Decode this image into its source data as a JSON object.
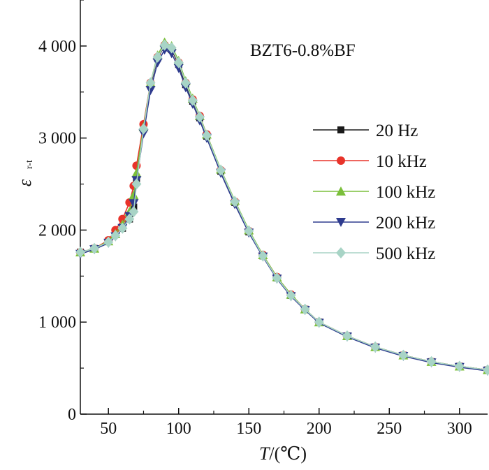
{
  "chart_data": {
    "type": "line",
    "annotation": "BZT6-0.8%BF",
    "xlabel_italic": "T",
    "xlabel_rest": "/(℃)",
    "ylabel_main": "ε",
    "ylabel_sub": "r-t",
    "xlim": [
      30,
      320
    ],
    "ylim": [
      0,
      4500
    ],
    "xticks": [
      50,
      100,
      150,
      200,
      250,
      300
    ],
    "xtick_labels": [
      "50",
      "100",
      "150",
      "200",
      "250",
      "300"
    ],
    "yticks": [
      0,
      1000,
      2000,
      3000,
      4000
    ],
    "ytick_labels": [
      "0",
      "1 000",
      "2 000",
      "3 000",
      "4 000"
    ],
    "series": [
      {
        "name": "20 Hz",
        "marker": "square",
        "color": "#1a1a1a",
        "x": [
          30,
          40,
          50,
          55,
          60,
          65,
          68,
          70,
          75,
          80,
          85,
          90,
          95,
          100,
          105,
          110,
          115,
          120,
          130,
          140,
          150,
          160,
          170,
          180,
          190,
          200,
          220,
          240,
          260,
          280,
          300,
          320
        ],
        "y": [
          1760,
          1800,
          1880,
          1950,
          2020,
          2120,
          2250,
          2560,
          3100,
          3580,
          3870,
          4000,
          3960,
          3800,
          3580,
          3400,
          3220,
          3020,
          2640,
          2300,
          1980,
          1720,
          1480,
          1290,
          1140,
          1000,
          850,
          730,
          640,
          570,
          520,
          480
        ]
      },
      {
        "name": "10 kHz",
        "marker": "circle",
        "color": "#e8332a",
        "x": [
          30,
          40,
          50,
          55,
          60,
          65,
          68,
          70,
          75,
          80,
          85,
          90,
          95,
          100,
          105,
          110,
          115,
          120,
          130,
          140,
          150,
          160,
          170,
          180,
          190,
          200,
          220,
          240,
          260,
          280,
          300,
          320
        ],
        "y": [
          1760,
          1800,
          1890,
          2000,
          2120,
          2300,
          2480,
          2700,
          3150,
          3600,
          3880,
          4010,
          3970,
          3820,
          3600,
          3420,
          3240,
          3040,
          2650,
          2310,
          1990,
          1730,
          1490,
          1300,
          1140,
          1000,
          850,
          730,
          640,
          570,
          520,
          480
        ]
      },
      {
        "name": "100 kHz",
        "marker": "triangle-up",
        "color": "#7bbf3b",
        "x": [
          30,
          40,
          50,
          55,
          60,
          65,
          68,
          70,
          75,
          80,
          85,
          90,
          95,
          100,
          105,
          110,
          115,
          120,
          130,
          140,
          150,
          160,
          170,
          180,
          190,
          200,
          220,
          240,
          260,
          280,
          300,
          320
        ],
        "y": [
          1760,
          1800,
          1880,
          1960,
          2060,
          2200,
          2380,
          2620,
          3120,
          3600,
          3900,
          4040,
          4000,
          3840,
          3620,
          3430,
          3240,
          3040,
          2660,
          2320,
          2000,
          1730,
          1490,
          1300,
          1140,
          1000,
          850,
          730,
          640,
          570,
          520,
          480
        ]
      },
      {
        "name": "200 kHz",
        "marker": "triangle-down",
        "color": "#2e3b8e",
        "x": [
          30,
          40,
          50,
          55,
          60,
          65,
          68,
          70,
          75,
          80,
          85,
          90,
          95,
          100,
          105,
          110,
          115,
          120,
          130,
          140,
          150,
          160,
          170,
          180,
          190,
          200,
          220,
          240,
          260,
          280,
          300,
          320
        ],
        "y": [
          1740,
          1790,
          1860,
          1930,
          2020,
          2150,
          2290,
          2540,
          3050,
          3520,
          3820,
          3960,
          3920,
          3760,
          3550,
          3370,
          3190,
          3000,
          2620,
          2280,
          1970,
          1710,
          1470,
          1280,
          1130,
          990,
          840,
          720,
          630,
          560,
          510,
          470
        ]
      },
      {
        "name": "500 kHz",
        "marker": "diamond",
        "color": "#a8d4c6",
        "x": [
          30,
          40,
          50,
          55,
          60,
          65,
          68,
          70,
          75,
          80,
          85,
          90,
          95,
          100,
          105,
          110,
          115,
          120,
          130,
          140,
          150,
          160,
          170,
          180,
          190,
          200,
          220,
          240,
          260,
          280,
          300,
          320
        ],
        "y": [
          1760,
          1800,
          1870,
          1940,
          2020,
          2120,
          2200,
          2500,
          3100,
          3600,
          3880,
          4010,
          3980,
          3820,
          3600,
          3410,
          3230,
          3030,
          2650,
          2310,
          1990,
          1720,
          1480,
          1290,
          1140,
          1000,
          850,
          730,
          640,
          570,
          520,
          480
        ]
      }
    ]
  }
}
